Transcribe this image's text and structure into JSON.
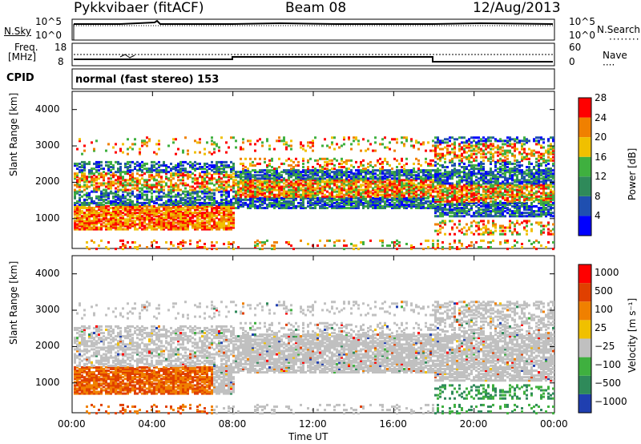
{
  "header": {
    "station": "Pykkvibaer (fitACF)",
    "beam": "Beam 08",
    "date": "12/Aug/2013"
  },
  "panels": {
    "nsky_label": "N.Sky",
    "nsky_top": "10^5",
    "nsky_bottom": "10^0",
    "nsearch_label": "N.Search",
    "freq_label_1": "Freq.",
    "freq_label_2": "[MHz]",
    "freq_top": "18",
    "freq_bottom": "8",
    "nave_top": "60",
    "nave_bottom": "0",
    "nave_label": "Nave",
    "cpid_label": "CPID",
    "cpid_text": "normal (fast stereo) 153"
  },
  "chart_data": [
    {
      "type": "heatmap",
      "title": "",
      "parameter": "Power",
      "ylabel": "Slant Range [km]",
      "xlabel": "Time UT",
      "ylim": [
        180,
        4500
      ],
      "yticks": [
        "1000",
        "2000",
        "3000",
        "4000"
      ],
      "xticks": [
        "00:00",
        "04:00",
        "08:00",
        "12:00",
        "16:00",
        "20:00",
        "00:00"
      ],
      "colorbar_label": "Power [dB]",
      "colorbar_ticks": [
        "4",
        "8",
        "12",
        "16",
        "20",
        "24",
        "28"
      ],
      "colors": [
        "#0000ff",
        "#1f4fb0",
        "#2f8a5a",
        "#3fb03f",
        "#f0c000",
        "#f08000",
        "#ff0000"
      ]
    },
    {
      "type": "heatmap",
      "title": "",
      "parameter": "Velocity",
      "ylabel": "Slant Range [km]",
      "xlabel": "Time UT",
      "ylim": [
        180,
        4500
      ],
      "yticks": [
        "1000",
        "2000",
        "3000",
        "4000"
      ],
      "xticks": [
        "00:00",
        "04:00",
        "08:00",
        "12:00",
        "16:00",
        "20:00",
        "00:00"
      ],
      "colorbar_label": "Velocity [m s⁻¹]",
      "colorbar_ticks": [
        "1000",
        "500",
        "100",
        "25",
        "−25",
        "−100",
        "−500",
        "−1000"
      ],
      "colors": [
        "#1f3fb0",
        "#2f8a5a",
        "#3fb03f",
        "#c0c0c0",
        "#f0c000",
        "#f08000",
        "#e04000",
        "#ff0000"
      ]
    }
  ]
}
